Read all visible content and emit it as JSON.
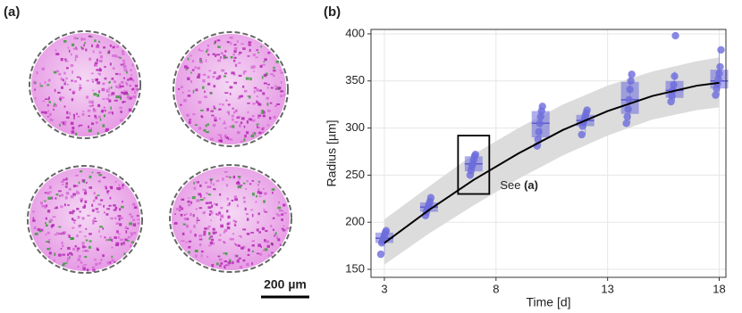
{
  "panel_labels": [
    "(a)",
    "(b)"
  ],
  "scale_bar": "200 µm",
  "chart_data": {
    "type": "box",
    "xlabel": "Time [d]",
    "ylabel": "Radius [µm]",
    "xlim": [
      2.4,
      18.3
    ],
    "ylim": [
      141.5,
      404.7
    ],
    "xticks": [
      3,
      8,
      13,
      18
    ],
    "yticks": [
      150,
      200,
      250,
      300,
      350,
      400
    ],
    "grid": true,
    "color": "#6b6bdc",
    "boxes": [
      {
        "x": 3,
        "min": 166,
        "q1": 178,
        "median": 183,
        "q3": 189,
        "max": 192,
        "points": [
          166,
          178,
          180,
          183,
          186,
          189,
          191
        ]
      },
      {
        "x": 5,
        "min": 207,
        "q1": 211,
        "median": 216,
        "q3": 221,
        "max": 226,
        "points": [
          207,
          211,
          214,
          216,
          219,
          222,
          226
        ]
      },
      {
        "x": 7,
        "min": 250,
        "q1": 254,
        "median": 262,
        "q3": 270,
        "max": 272,
        "points": [
          250,
          255,
          259,
          262,
          266,
          270,
          272
        ]
      },
      {
        "x": 10,
        "min": 281,
        "q1": 290,
        "median": 305,
        "q3": 318,
        "max": 323,
        "points": [
          281,
          288,
          296,
          305,
          312,
          318,
          323
        ]
      },
      {
        "x": 12,
        "min": 293,
        "q1": 302,
        "median": 308,
        "q3": 314,
        "max": 319,
        "points": [
          293,
          302,
          306,
          309,
          313,
          316,
          319
        ]
      },
      {
        "x": 14,
        "min": 305,
        "q1": 315,
        "median": 330,
        "q3": 349,
        "max": 357,
        "points": [
          305,
          312,
          320,
          330,
          341,
          350,
          357
        ]
      },
      {
        "x": 16,
        "min": 328,
        "q1": 332,
        "median": 340,
        "q3": 350,
        "max": 360,
        "points": [
          328,
          334,
          340,
          346,
          355,
          398
        ]
      },
      {
        "x": 18,
        "min": 335,
        "q1": 342,
        "median": 350,
        "q3": 362,
        "max": 383,
        "points": [
          335,
          342,
          347,
          352,
          358,
          365,
          383
        ]
      }
    ],
    "fit": {
      "x": [
        3,
        5,
        7,
        9,
        11,
        13,
        15,
        17,
        18
      ],
      "y": [
        178,
        213,
        245,
        273,
        298,
        318,
        334,
        345,
        348
      ],
      "lower": [
        155,
        188,
        218,
        246,
        271,
        292,
        309,
        319,
        322
      ],
      "upper": [
        203,
        238,
        272,
        300,
        325,
        345,
        360,
        371,
        375
      ]
    },
    "highlight": {
      "x": [
        6.3,
        7.7
      ],
      "y": [
        230,
        292
      ]
    },
    "annotation": {
      "text": "See",
      "ref": "(a)"
    }
  }
}
